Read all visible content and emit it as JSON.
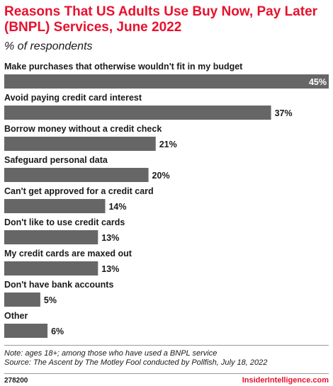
{
  "chart_data": {
    "type": "bar",
    "orientation": "horizontal",
    "title": "Reasons That US Adults Use Buy Now, Pay Later (BNPL) Services, June 2022",
    "subtitle": "% of respondents",
    "categories": [
      "Make purchases that otherwise wouldn't fit in my budget",
      "Avoid paying credit card interest",
      "Borrow money without a credit check",
      "Safeguard personal data",
      "Can't get approved for a credit card",
      "Don't like to use credit cards",
      "My credit cards are maxed out",
      "Don't have bank accounts",
      "Other"
    ],
    "values": [
      45,
      37,
      21,
      20,
      14,
      13,
      13,
      5,
      6
    ],
    "value_labels": [
      "45%",
      "37%",
      "21%",
      "20%",
      "14%",
      "13%",
      "13%",
      "5%",
      "6%"
    ],
    "xlim": [
      0,
      45
    ],
    "bar_color": "#666666",
    "grid": false,
    "legend": "none"
  },
  "footer": {
    "note": "Note: ages 18+; among those who have used a BNPL service",
    "source": "Source: The Ascent by The Motley Fool conducted by Pollfish, July 18, 2022",
    "chart_id": "278200",
    "brand": "InsiderIntelligence.com"
  },
  "colors": {
    "title": "#e8112d",
    "bar": "#666666",
    "brand": "#e8112d"
  }
}
